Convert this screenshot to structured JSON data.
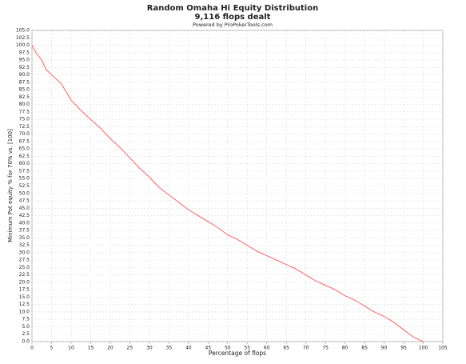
{
  "chart_data": {
    "type": "line",
    "title": "Random Omaha Hi Equity Distribution",
    "subtitle": "9,116 flops dealt",
    "credit": "Powered by ProPokerTools.com",
    "x_label": "Percentage of flops",
    "y_label": "Minimum Pot equity % for 70% vs. [100]",
    "x": [
      0,
      1,
      2.5,
      3.5,
      5,
      7.5,
      10,
      12.5,
      15,
      17.5,
      20,
      22.5,
      25,
      27.5,
      30,
      32.5,
      35,
      37.5,
      40,
      42.5,
      45,
      47.5,
      50,
      52.5,
      55,
      57.5,
      60,
      62.5,
      65,
      67.5,
      70,
      72.5,
      75,
      77.5,
      80,
      82.5,
      85,
      87.5,
      90,
      92.5,
      95,
      97.5,
      100
    ],
    "series": [
      {
        "name": "equity",
        "color": "#ff6060",
        "values": [
          100,
          97.5,
          95,
          92,
          90,
          87,
          81.5,
          78,
          75,
          72,
          68.5,
          65.5,
          62,
          58.5,
          55.5,
          52,
          49.5,
          47,
          44.5,
          42.5,
          40.5,
          38.5,
          36,
          34.5,
          32.5,
          30.5,
          29,
          27.5,
          26,
          24.5,
          22.5,
          20.5,
          19,
          17.5,
          15.5,
          14,
          12,
          10,
          8.5,
          6.5,
          4,
          1.5,
          0
        ]
      }
    ],
    "xlim": [
      0,
      105
    ],
    "xticks": [
      0,
      5,
      10,
      15,
      20,
      25,
      30,
      35,
      40,
      45,
      50,
      55,
      60,
      65,
      70,
      75,
      80,
      85,
      90,
      95,
      100,
      105
    ],
    "ylim": [
      0,
      105
    ],
    "yticks": [
      {
        "value": 0,
        "label": "0.0"
      },
      2.5,
      {
        "value": 5,
        "label": "5.0"
      },
      7.5,
      {
        "value": 10,
        "label": "10.0"
      },
      12.5,
      {
        "value": 15,
        "label": "15.0"
      },
      17.5,
      {
        "value": 20,
        "label": "20.0"
      },
      22.5,
      {
        "value": 25,
        "label": "25.0"
      },
      27.5,
      {
        "value": 30,
        "label": "30.0"
      },
      32.5,
      {
        "value": 35,
        "label": "35.0"
      },
      37.5,
      {
        "value": 40,
        "label": "40.0"
      },
      42.5,
      {
        "value": 45,
        "label": "45.0"
      },
      47.5,
      {
        "value": 50,
        "label": "50.0"
      },
      52.5,
      {
        "value": 55,
        "label": "55.0"
      },
      57.5,
      {
        "value": 60,
        "label": "60.0"
      },
      62.5,
      {
        "value": 65,
        "label": "65.0"
      },
      67.5,
      {
        "value": 70,
        "label": "70.0"
      },
      72.5,
      {
        "value": 75,
        "label": "75.0"
      },
      77.5,
      {
        "value": 80,
        "label": "80.0"
      },
      82.5,
      {
        "value": 85,
        "label": "85.0"
      },
      87.5,
      {
        "value": 90,
        "label": "90.0"
      },
      92.5,
      {
        "value": 95,
        "label": "95.0"
      },
      97.5,
      {
        "value": 100,
        "label": "100.0"
      },
      102.5,
      {
        "value": 105,
        "label": "105.0"
      }
    ],
    "grid": true
  }
}
